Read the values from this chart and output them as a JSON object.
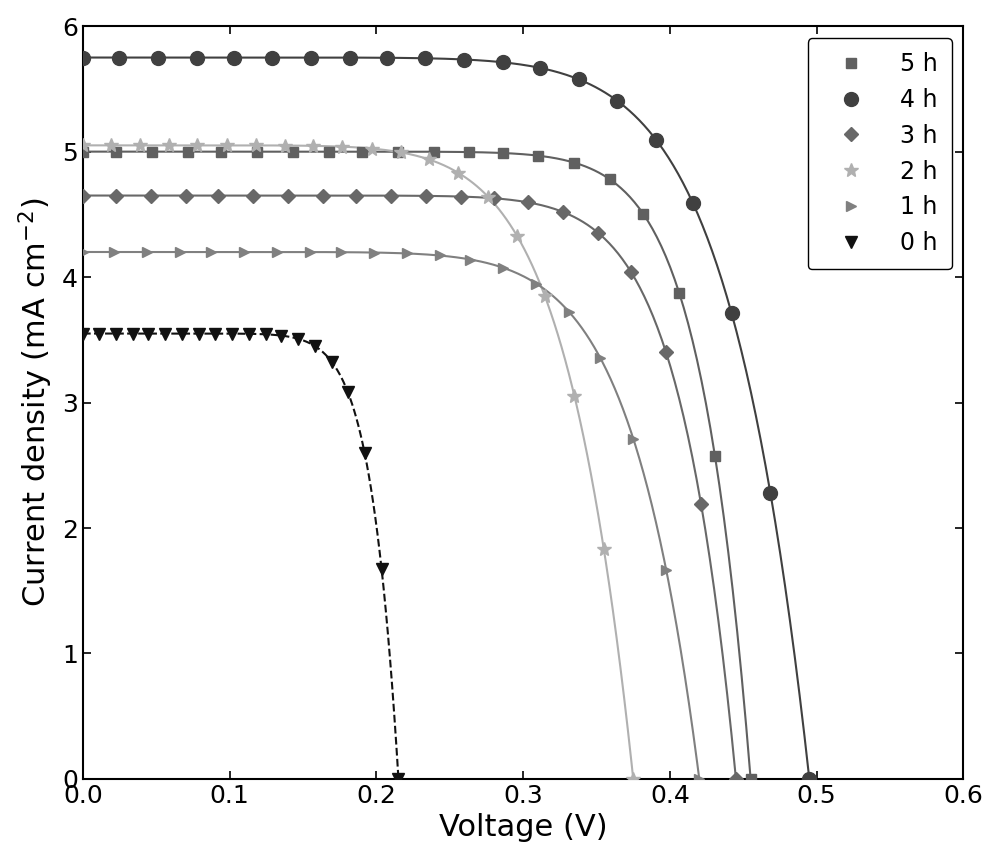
{
  "title": "",
  "xlabel": "Voltage (V)",
  "ylabel": "Current density (mA cm$^{-2}$)",
  "xlim": [
    0.0,
    0.6
  ],
  "ylim": [
    0.0,
    6.0
  ],
  "xticks": [
    0.0,
    0.1,
    0.2,
    0.3,
    0.4,
    0.5,
    0.6
  ],
  "yticks": [
    0,
    1,
    2,
    3,
    4,
    5,
    6
  ],
  "series": [
    {
      "label": "5 h",
      "color": "#606060",
      "marker": "s",
      "linestyle": "-",
      "markersize": 7,
      "linewidth": 1.5,
      "Voc": 0.455,
      "Jsc": 5.0,
      "FF": 0.76
    },
    {
      "label": "4 h",
      "color": "#404040",
      "marker": "o",
      "linestyle": "-",
      "markersize": 10,
      "linewidth": 1.5,
      "Voc": 0.495,
      "Jsc": 5.75,
      "FF": 0.7
    },
    {
      "label": "3 h",
      "color": "#686868",
      "marker": "D",
      "linestyle": "-",
      "markersize": 7,
      "linewidth": 1.5,
      "Voc": 0.445,
      "Jsc": 4.65,
      "FF": 0.74
    },
    {
      "label": "2 h",
      "color": "#b0b0b0",
      "marker": "*",
      "linestyle": "-",
      "markersize": 10,
      "linewidth": 1.5,
      "Voc": 0.375,
      "Jsc": 5.05,
      "FF": 0.68
    },
    {
      "label": "1 h",
      "color": "#808080",
      "marker": ">",
      "linestyle": "-",
      "markersize": 7,
      "linewidth": 1.5,
      "Voc": 0.42,
      "Jsc": 4.2,
      "FF": 0.7
    },
    {
      "label": "0 h",
      "color": "#111111",
      "marker": "v",
      "linestyle": "--",
      "markersize": 8,
      "linewidth": 1.5,
      "Voc": 0.215,
      "Jsc": 3.55,
      "FF": 0.74
    }
  ],
  "legend_loc": "upper right",
  "legend_fontsize": 17,
  "axis_fontsize": 22,
  "tick_fontsize": 18,
  "background_color": "#ffffff",
  "n_points": 20
}
